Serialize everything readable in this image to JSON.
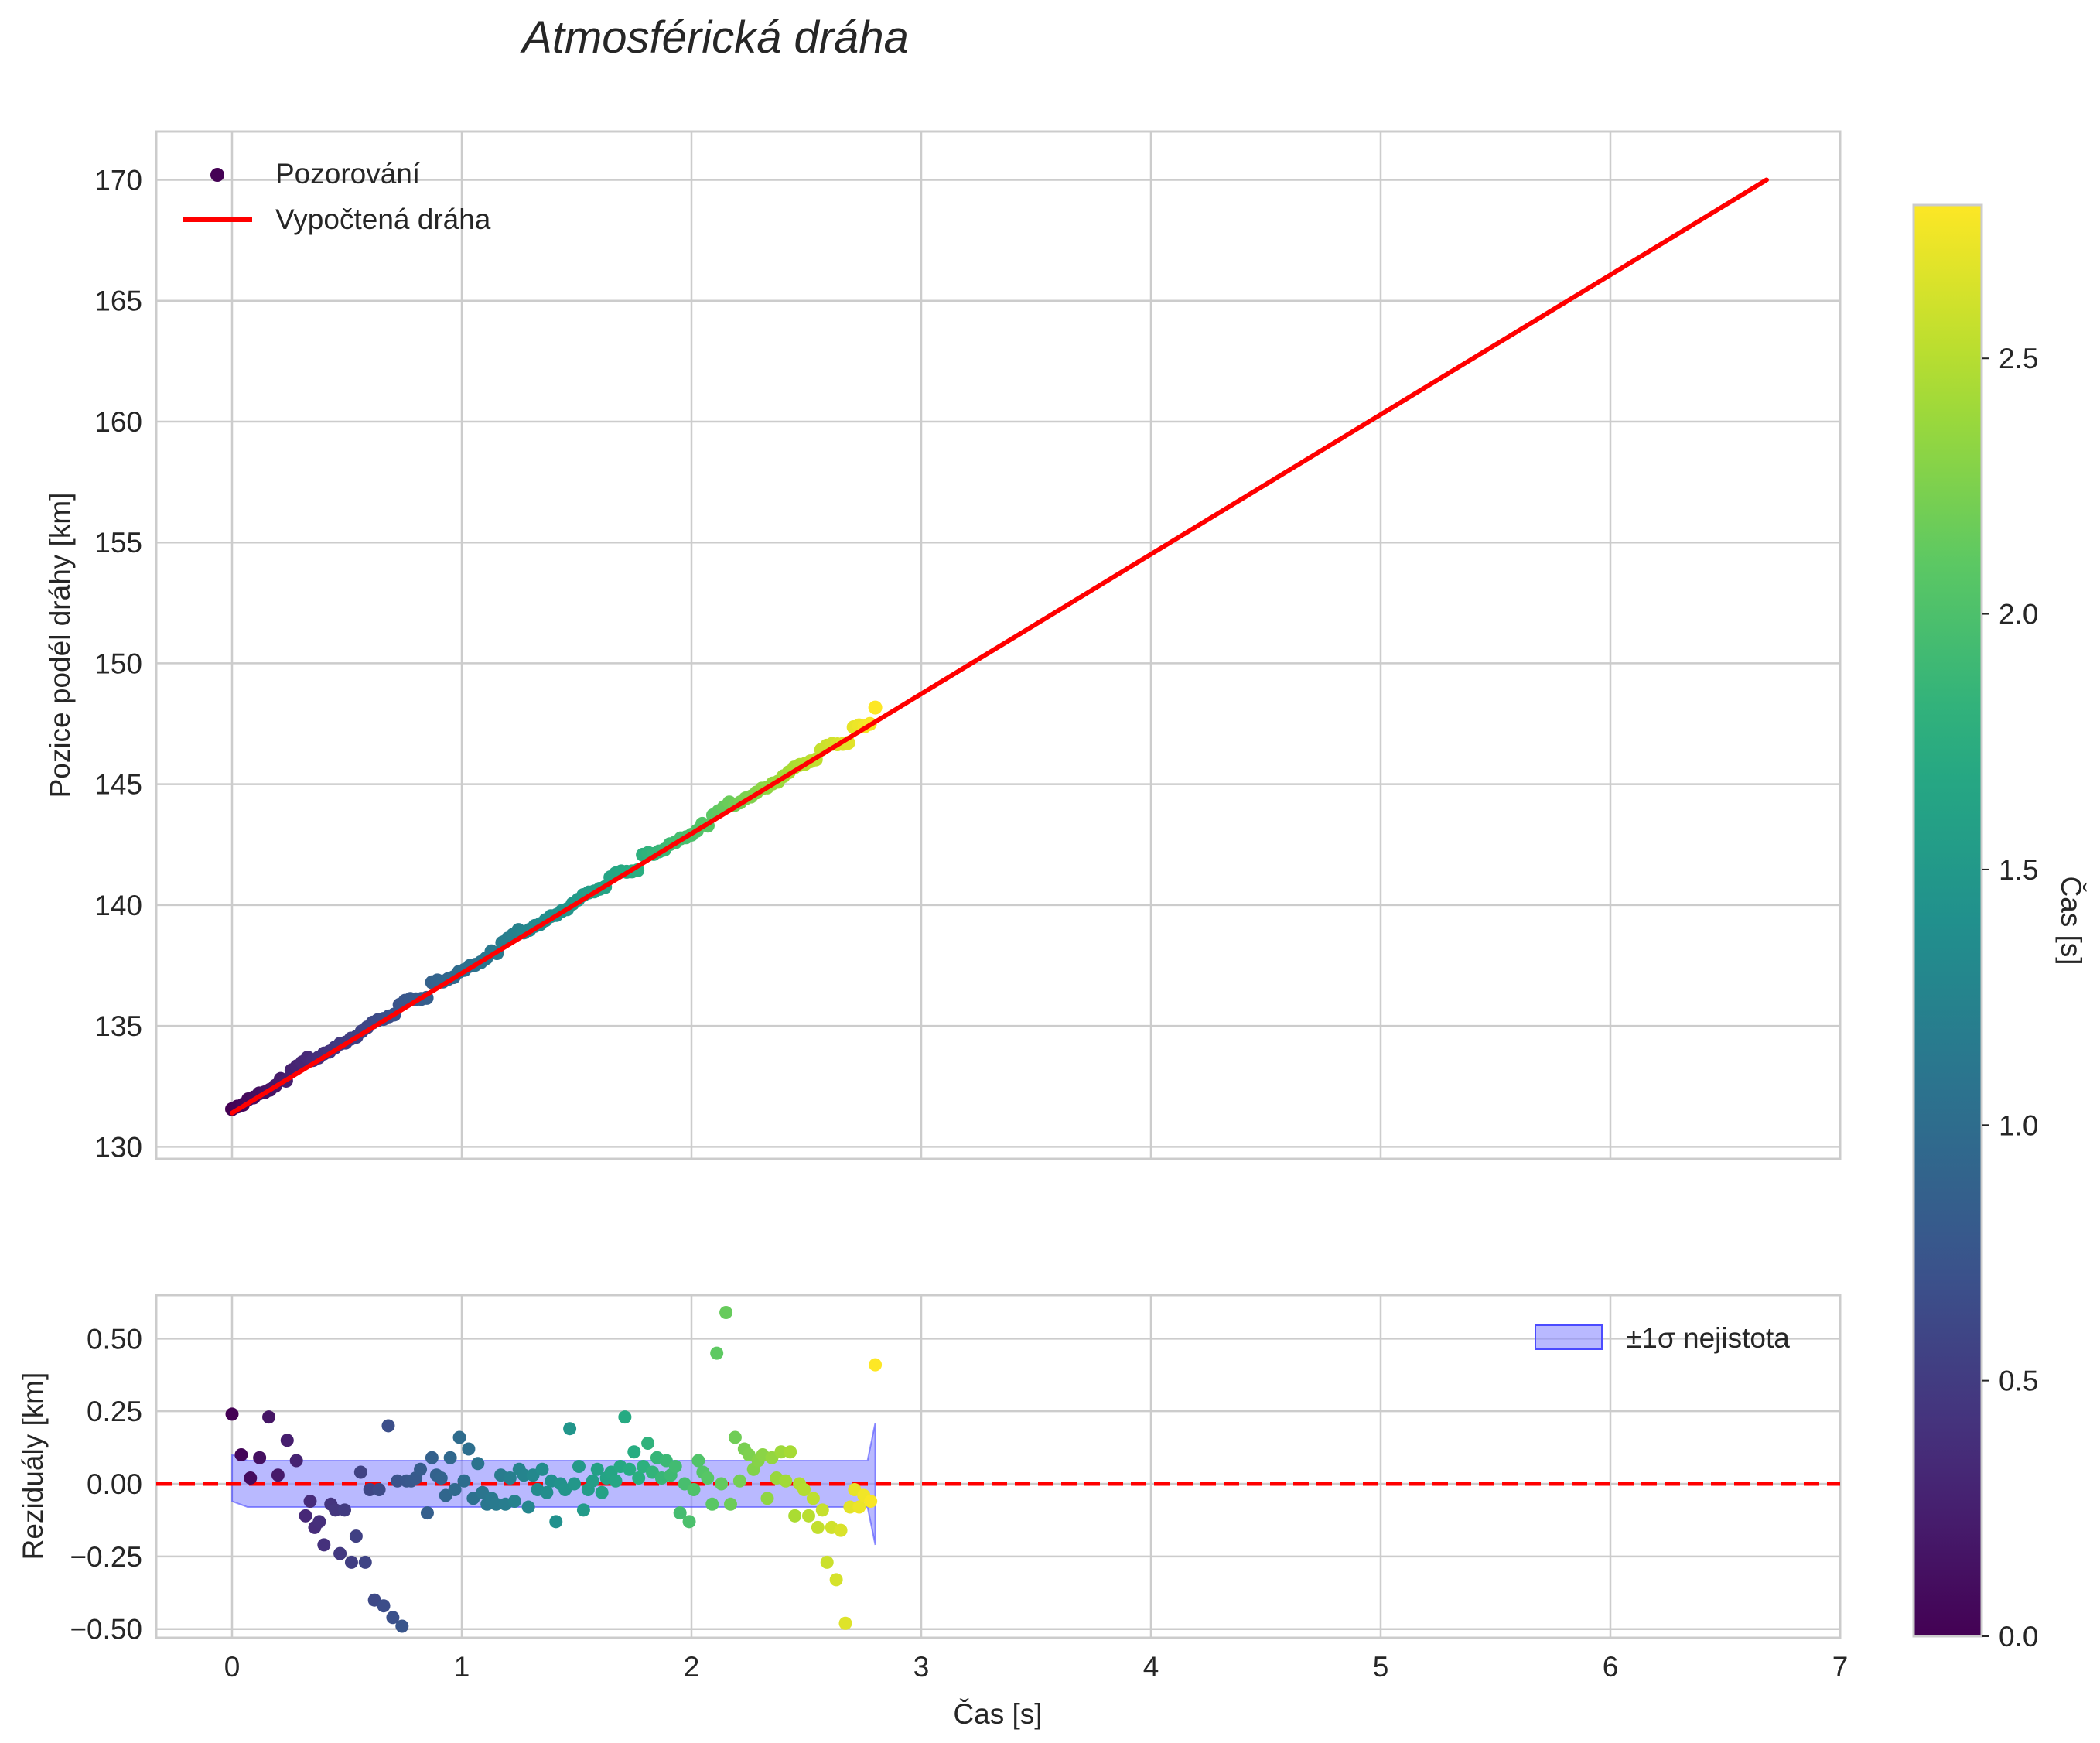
{
  "title": "Atmosférická dráha",
  "chart_data": [
    {
      "type": "scatter",
      "name": "trajectory",
      "ylabel": "Pozice podél dráhy [km]",
      "xlabel": "",
      "xlim": [
        -0.33,
        7.0
      ],
      "ylim": [
        129.5,
        172
      ],
      "xticks": [
        0,
        1,
        2,
        3,
        4,
        5,
        6,
        7
      ],
      "yticks": [
        130,
        135,
        140,
        145,
        150,
        155,
        160,
        165,
        170
      ],
      "grid": true,
      "legend": {
        "position": "upper-left",
        "entries": [
          {
            "label": "Pozorování",
            "kind": "marker",
            "color": "#440154"
          },
          {
            "label": "Vypočtená dráha",
            "kind": "line",
            "color": "#ff0000"
          }
        ]
      },
      "series": [
        {
          "name": "Pozorování",
          "kind": "scatter",
          "colormap": "viridis",
          "color_by": "time",
          "x_start": 0.0,
          "x_end": 2.8,
          "count": 120,
          "y_fit_slope": 5.75,
          "y_fit_intercept": 131.5,
          "y_offset_samples": [
            0.1,
            0.05,
            -0.05,
            0.1,
            0.0,
            0.05,
            -0.1,
            -0.15,
            -0.1,
            0.15,
            -0.2,
            0.3,
            0.35,
            0.4,
            0.5,
            0.1,
            0.05,
            0.1,
            0.0,
            0.05,
            0.1,
            -0.05,
            0.0,
            -0.1,
            0.05,
            0.1,
            0.2,
            0.15,
            0.0,
            -0.05,
            -0.15,
            0.3,
            0.35,
            0.25,
            0.0,
            -0.2,
            -0.35,
            0.5,
            0.4
          ]
        },
        {
          "name": "Vypočtená dráha",
          "kind": "line",
          "color": "#ff0000",
          "x": [
            0.0,
            6.68
          ],
          "y": [
            131.4,
            170.0
          ]
        }
      ]
    },
    {
      "type": "scatter",
      "name": "residuals",
      "ylabel": "Reziduály [km]",
      "xlabel": "Čas [s]",
      "xlim": [
        -0.33,
        7.0
      ],
      "ylim": [
        -0.53,
        0.65
      ],
      "xticks": [
        0,
        1,
        2,
        3,
        4,
        5,
        6,
        7
      ],
      "yticks": [
        -0.5,
        -0.25,
        0.0,
        0.25,
        0.5
      ],
      "ytick_labels": [
        "−0.50",
        "−0.25",
        "0.00",
        "0.25",
        "0.50"
      ],
      "grid": true,
      "zero_line": {
        "y": 0.0,
        "color": "#ff0000",
        "style": "dashed"
      },
      "legend": {
        "position": "upper-right",
        "entries": [
          {
            "label": "±1σ nejistota",
            "kind": "patch",
            "color": "#8a8aff"
          }
        ]
      },
      "band": {
        "x": [
          0.0,
          2.8
        ],
        "lower": -0.08,
        "upper": 0.08
      },
      "series": [
        {
          "name": "Reziduály",
          "kind": "scatter",
          "colormap": "viridis",
          "color_by": "time",
          "points": [
            [
              0.0,
              0.24
            ],
            [
              0.04,
              0.1
            ],
            [
              0.08,
              0.02
            ],
            [
              0.12,
              0.09
            ],
            [
              0.16,
              0.23
            ],
            [
              0.2,
              0.03
            ],
            [
              0.24,
              0.15
            ],
            [
              0.28,
              0.08
            ],
            [
              0.32,
              -0.11
            ],
            [
              0.34,
              -0.06
            ],
            [
              0.36,
              -0.15
            ],
            [
              0.38,
              -0.13
            ],
            [
              0.4,
              -0.21
            ],
            [
              0.43,
              -0.07
            ],
            [
              0.45,
              -0.09
            ],
            [
              0.47,
              -0.24
            ],
            [
              0.49,
              -0.09
            ],
            [
              0.52,
              -0.27
            ],
            [
              0.54,
              -0.18
            ],
            [
              0.56,
              0.04
            ],
            [
              0.58,
              -0.27
            ],
            [
              0.6,
              -0.02
            ],
            [
              0.62,
              -0.4
            ],
            [
              0.64,
              -0.02
            ],
            [
              0.66,
              -0.42
            ],
            [
              0.68,
              0.2
            ],
            [
              0.7,
              -0.46
            ],
            [
              0.72,
              0.01
            ],
            [
              0.74,
              -0.49
            ],
            [
              0.76,
              0.01
            ],
            [
              0.78,
              0.01
            ],
            [
              0.8,
              0.02
            ],
            [
              0.82,
              0.05
            ],
            [
              0.85,
              -0.1
            ],
            [
              0.87,
              0.09
            ],
            [
              0.89,
              0.03
            ],
            [
              0.91,
              0.02
            ],
            [
              0.93,
              -0.04
            ],
            [
              0.95,
              0.09
            ],
            [
              0.97,
              -0.02
            ],
            [
              0.99,
              0.16
            ],
            [
              1.01,
              0.01
            ],
            [
              1.03,
              0.12
            ],
            [
              1.05,
              -0.05
            ],
            [
              1.07,
              0.07
            ],
            [
              1.09,
              -0.03
            ],
            [
              1.11,
              -0.07
            ],
            [
              1.13,
              -0.05
            ],
            [
              1.15,
              -0.07
            ],
            [
              1.17,
              0.03
            ],
            [
              1.19,
              -0.07
            ],
            [
              1.21,
              0.02
            ],
            [
              1.23,
              -0.06
            ],
            [
              1.25,
              0.05
            ],
            [
              1.27,
              0.03
            ],
            [
              1.29,
              -0.08
            ],
            [
              1.31,
              0.03
            ],
            [
              1.33,
              -0.02
            ],
            [
              1.35,
              0.05
            ],
            [
              1.37,
              -0.03
            ],
            [
              1.39,
              0.01
            ],
            [
              1.41,
              -0.13
            ],
            [
              1.43,
              0.0
            ],
            [
              1.45,
              -0.02
            ],
            [
              1.47,
              0.19
            ],
            [
              1.49,
              0.0
            ],
            [
              1.51,
              0.06
            ],
            [
              1.53,
              -0.09
            ],
            [
              1.55,
              -0.02
            ],
            [
              1.57,
              0.01
            ],
            [
              1.59,
              0.05
            ],
            [
              1.61,
              -0.03
            ],
            [
              1.63,
              0.02
            ],
            [
              1.65,
              0.04
            ],
            [
              1.67,
              0.01
            ],
            [
              1.69,
              0.06
            ],
            [
              1.71,
              0.23
            ],
            [
              1.73,
              0.05
            ],
            [
              1.75,
              0.11
            ],
            [
              1.77,
              0.02
            ],
            [
              1.79,
              0.06
            ],
            [
              1.81,
              0.14
            ],
            [
              1.83,
              0.04
            ],
            [
              1.85,
              0.09
            ],
            [
              1.87,
              0.02
            ],
            [
              1.89,
              0.08
            ],
            [
              1.91,
              0.03
            ],
            [
              1.93,
              0.06
            ],
            [
              1.95,
              -0.1
            ],
            [
              1.97,
              0.0
            ],
            [
              1.99,
              -0.13
            ],
            [
              2.01,
              -0.02
            ],
            [
              2.03,
              0.08
            ],
            [
              2.05,
              0.04
            ],
            [
              2.07,
              0.02
            ],
            [
              2.09,
              -0.07
            ],
            [
              2.11,
              0.45
            ],
            [
              2.13,
              0.0
            ],
            [
              2.15,
              0.59
            ],
            [
              2.17,
              -0.07
            ],
            [
              2.19,
              0.16
            ],
            [
              2.21,
              0.01
            ],
            [
              2.23,
              0.12
            ],
            [
              2.25,
              0.1
            ],
            [
              2.27,
              0.05
            ],
            [
              2.29,
              0.08
            ],
            [
              2.31,
              0.1
            ],
            [
              2.33,
              -0.05
            ],
            [
              2.35,
              0.09
            ],
            [
              2.37,
              0.02
            ],
            [
              2.39,
              0.11
            ],
            [
              2.41,
              0.01
            ],
            [
              2.43,
              0.11
            ],
            [
              2.45,
              -0.11
            ],
            [
              2.47,
              0.0
            ],
            [
              2.49,
              -0.02
            ],
            [
              2.51,
              -0.11
            ],
            [
              2.53,
              -0.05
            ],
            [
              2.55,
              -0.15
            ],
            [
              2.57,
              -0.09
            ],
            [
              2.59,
              -0.27
            ],
            [
              2.61,
              -0.15
            ],
            [
              2.63,
              -0.33
            ],
            [
              2.65,
              -0.16
            ],
            [
              2.67,
              -0.48
            ],
            [
              2.69,
              -0.08
            ],
            [
              2.71,
              -0.02
            ],
            [
              2.73,
              -0.08
            ],
            [
              2.75,
              -0.04
            ],
            [
              2.78,
              -0.06
            ],
            [
              2.8,
              0.41
            ]
          ]
        }
      ]
    },
    {
      "type": "colorbar",
      "name": "colorbar",
      "label": "Čas [s]",
      "colormap": "viridis",
      "range": [
        0.0,
        2.8
      ],
      "ticks": [
        0.0,
        0.5,
        1.0,
        1.5,
        2.0,
        2.5
      ],
      "tick_labels": [
        "0.0",
        "0.5",
        "1.0",
        "1.5",
        "2.0",
        "2.5"
      ]
    }
  ]
}
